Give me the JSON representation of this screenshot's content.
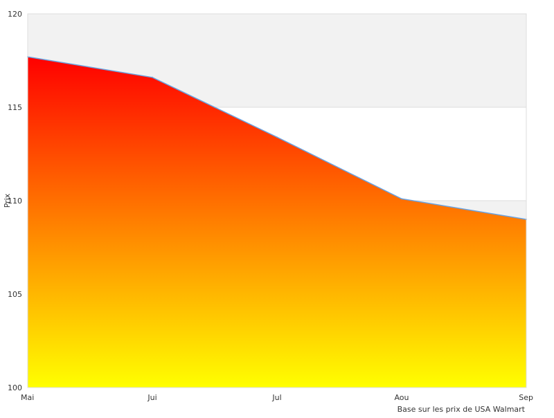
{
  "chart_data": {
    "type": "area",
    "categories": [
      "Mai",
      "Jui",
      "Jul",
      "Aou",
      "Sep"
    ],
    "series": [
      {
        "values": [
          117.7,
          116.6,
          113.4,
          110.1,
          109.0
        ]
      }
    ],
    "ylabel": "Prix",
    "ylim": [
      100,
      120
    ],
    "y_ticks": [
      100,
      105,
      110,
      115,
      120
    ],
    "grid": true,
    "source_note": "Base sur les prix de USA Walmart",
    "colors": {
      "fill_top": "#ff0000",
      "fill_bottom": "#ffff00",
      "line": "#6aa2e0",
      "band": "#f2f2f2",
      "grid": "#dddddd",
      "text": "#333333"
    }
  }
}
